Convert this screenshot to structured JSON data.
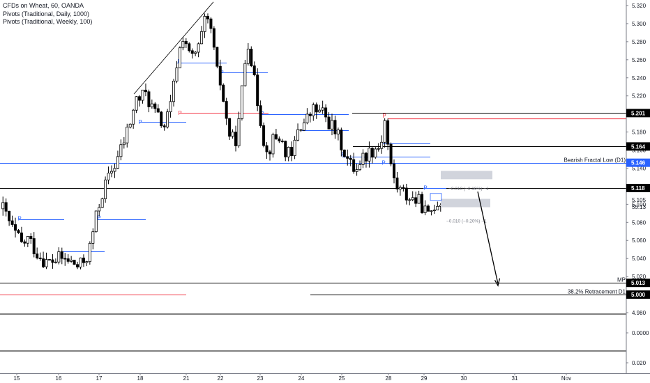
{
  "legend": {
    "symbol": "CFDs on Wheat, 60, OANDA",
    "pivots_daily": "Pivots (Traditional, Daily, 1000)",
    "pivots_weekly": "Pivots (Traditional, Weekly, 100)"
  },
  "colors": {
    "up_candle": "#ffffff",
    "down_candle": "#000000",
    "candle_outline": "#000000",
    "pivot_blue": "#2962ff",
    "pivot_red": "#f23645",
    "level_line": "#000000",
    "grid": "#e9e9ea",
    "axis_text": "#131722",
    "highlight_box": "#d1d4dc"
  },
  "chart_data": {
    "type": "candlestick",
    "x_ticks": [
      "15",
      "16",
      "17",
      "18",
      "21",
      "22",
      "23",
      "24",
      "25",
      "28",
      "29",
      "30",
      "31",
      "Nov"
    ],
    "y_ticks_price": [
      "5.320",
      "5.300",
      "5.280",
      "5.260",
      "5.240",
      "5.220",
      "5.200",
      "5.180",
      "5.160",
      "5.140",
      "5.120",
      "5.100",
      "5.080",
      "5.060",
      "5.040",
      "5.020",
      "5.000",
      "4.980"
    ],
    "y_ticks_lower": [
      "0.0000",
      "0.020"
    ],
    "ylim": [
      4.978,
      5.324
    ],
    "price_labels": [
      {
        "text": "5.201",
        "value": 5.201,
        "highlight": false
      },
      {
        "text": "5.164",
        "value": 5.164,
        "highlight": false
      },
      {
        "text": "5.146",
        "value": 5.146,
        "highlight": true
      },
      {
        "text": "5.118",
        "value": 5.118,
        "highlight": false
      },
      {
        "text": "5.105",
        "value": 5.105,
        "highlight": false
      },
      {
        "text": "55:13",
        "value": 5.097,
        "highlight": false
      },
      {
        "text": "5.013",
        "value": 5.013,
        "highlight": false
      },
      {
        "text": "5.000",
        "value": 5.0,
        "highlight": false
      }
    ],
    "horizontal_levels": [
      {
        "value": 5.201,
        "label": ""
      },
      {
        "value": 5.164,
        "label": ""
      },
      {
        "value": 5.146,
        "label": "Bearish Fractal Low (D1)"
      },
      {
        "value": 5.118,
        "label": ""
      },
      {
        "value": 5.013,
        "label": "MP"
      },
      {
        "value": 5.0,
        "label": "38.2% Retracement D1"
      }
    ],
    "annotations": [
      {
        "text": "−0.010 (−0.19%) −1",
        "value": 5.118
      },
      {
        "text": "−0.010 (−0.20%) −1",
        "value": 5.082
      }
    ],
    "pivot_marker": "P",
    "anchors": [
      {
        "x": 0,
        "y": 5.095
      },
      {
        "x": 0.03,
        "y": 5.072
      },
      {
        "x": 0.06,
        "y": 5.055
      },
      {
        "x": 0.08,
        "y": 5.062
      },
      {
        "x": 0.11,
        "y": 5.045
      },
      {
        "x": 0.14,
        "y": 5.035
      },
      {
        "x": 0.18,
        "y": 5.04
      },
      {
        "x": 0.21,
        "y": 5.037
      },
      {
        "x": 0.24,
        "y": 5.03
      },
      {
        "x": 0.27,
        "y": 5.045
      },
      {
        "x": 0.29,
        "y": 5.08
      },
      {
        "x": 0.31,
        "y": 5.11
      },
      {
        "x": 0.34,
        "y": 5.135
      },
      {
        "x": 0.36,
        "y": 5.15
      },
      {
        "x": 0.38,
        "y": 5.168
      },
      {
        "x": 0.4,
        "y": 5.19
      },
      {
        "x": 0.42,
        "y": 5.215
      },
      {
        "x": 0.45,
        "y": 5.222
      },
      {
        "x": 0.48,
        "y": 5.2
      },
      {
        "x": 0.51,
        "y": 5.186
      },
      {
        "x": 0.53,
        "y": 5.21
      },
      {
        "x": 0.55,
        "y": 5.26
      },
      {
        "x": 0.57,
        "y": 5.29
      },
      {
        "x": 0.59,
        "y": 5.26
      },
      {
        "x": 0.615,
        "y": 5.27
      },
      {
        "x": 0.64,
        "y": 5.305
      },
      {
        "x": 0.66,
        "y": 5.29
      },
      {
        "x": 0.67,
        "y": 5.25
      },
      {
        "x": 0.69,
        "y": 5.23
      },
      {
        "x": 0.7,
        "y": 5.2
      },
      {
        "x": 0.72,
        "y": 5.17
      },
      {
        "x": 0.74,
        "y": 5.175
      },
      {
        "x": 0.76,
        "y": 5.25
      },
      {
        "x": 0.775,
        "y": 5.285
      },
      {
        "x": 0.79,
        "y": 5.24
      },
      {
        "x": 0.81,
        "y": 5.2
      },
      {
        "x": 0.83,
        "y": 5.155
      },
      {
        "x": 0.85,
        "y": 5.17
      },
      {
        "x": 0.87,
        "y": 5.175
      },
      {
        "x": 0.89,
        "y": 5.16
      },
      {
        "x": 0.91,
        "y": 5.15
      },
      {
        "x": 0.93,
        "y": 5.185
      },
      {
        "x": 0.95,
        "y": 5.19
      },
      {
        "x": 0.98,
        "y": 5.205
      },
      {
        "x": 1.01,
        "y": 5.2
      },
      {
        "x": 1.04,
        "y": 5.185
      },
      {
        "x": 1.07,
        "y": 5.165
      },
      {
        "x": 1.09,
        "y": 5.145
      },
      {
        "x": 1.11,
        "y": 5.14
      },
      {
        "x": 1.13,
        "y": 5.15
      },
      {
        "x": 1.16,
        "y": 5.16
      },
      {
        "x": 1.19,
        "y": 5.165
      },
      {
        "x": 1.205,
        "y": 5.195
      },
      {
        "x": 1.22,
        "y": 5.145
      },
      {
        "x": 1.24,
        "y": 5.12
      },
      {
        "x": 1.27,
        "y": 5.11
      },
      {
        "x": 1.3,
        "y": 5.105
      },
      {
        "x": 1.32,
        "y": 5.1
      },
      {
        "x": 1.34,
        "y": 5.085
      },
      {
        "x": 1.36,
        "y": 5.1
      },
      {
        "x": 1.38,
        "y": 5.105
      }
    ]
  }
}
